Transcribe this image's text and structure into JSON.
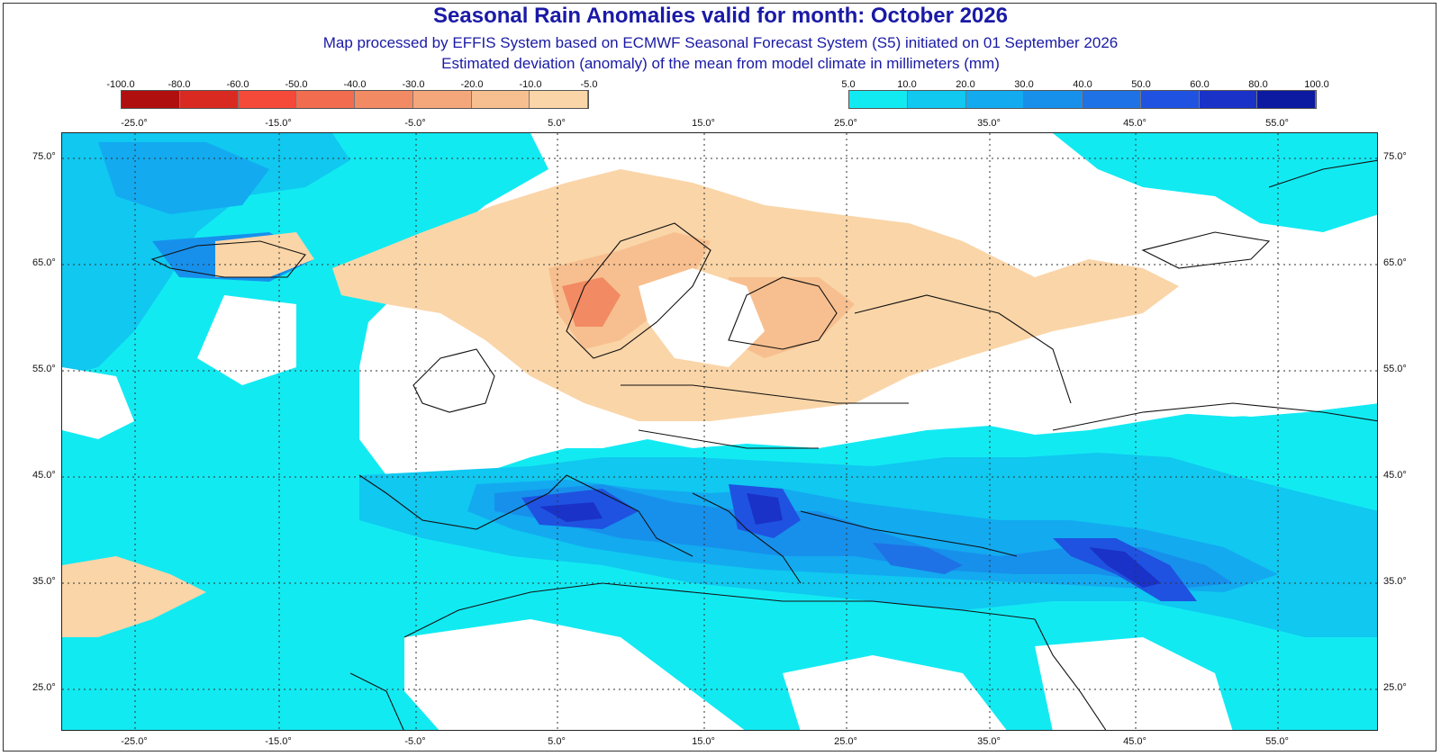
{
  "title": "Seasonal Rain Anomalies valid for month: October 2026",
  "subtitle_1": "Map processed by EFFIS System based on ECMWF Seasonal Forecast System (S5) initiated on 01 September 2026",
  "subtitle_2": "Estimated deviation (anomaly) of the mean from model climate in millimeters (mm)",
  "legend_negative": {
    "labels": [
      "-100.0",
      "-80.0",
      "-60.0",
      "-50.0",
      "-40.0",
      "-30.0",
      "-20.0",
      "-10.0",
      "-5.0"
    ],
    "colors": [
      "#b00f0f",
      "#d92a22",
      "#f5493a",
      "#f26c4f",
      "#f28a63",
      "#f5a77c",
      "#f7bf8f",
      "#fad5a8"
    ]
  },
  "legend_positive": {
    "labels": [
      "5.0",
      "10.0",
      "20.0",
      "30.0",
      "40.0",
      "50.0",
      "60.0",
      "80.0",
      "100.0"
    ],
    "colors": [
      "#12eaf2",
      "#10c8f0",
      "#13aaf0",
      "#1790ec",
      "#1f72e6",
      "#1f52e0",
      "#1a32c8",
      "#0b1aa0"
    ]
  },
  "lon_labels": [
    "-25.0°",
    "-15.0°",
    "-5.0°",
    "5.0°",
    "15.0°",
    "25.0°",
    "35.0°",
    "45.0°",
    "55.0°"
  ],
  "lat_labels": [
    "75.0°",
    "65.0°",
    "55.0°",
    "45.0°",
    "35.0°",
    "25.0°"
  ],
  "colors": {
    "title": "#1a1aa6",
    "neutral": "#ffffff",
    "coast": "#111111"
  }
}
